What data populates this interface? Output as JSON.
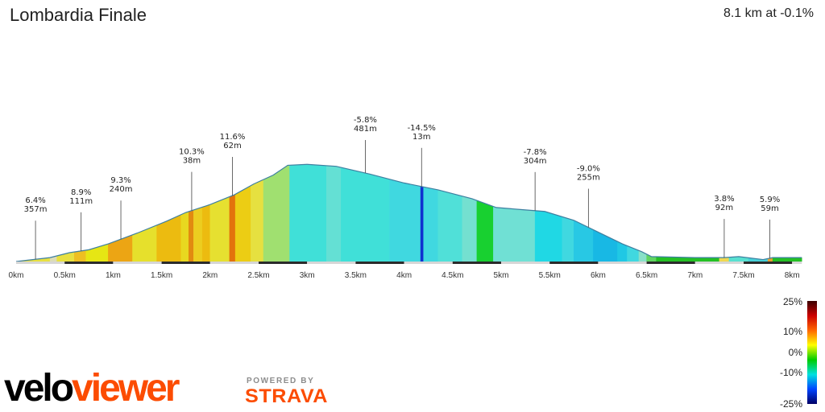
{
  "header": {
    "title": "Lombardia Finale",
    "summary": "8.1 km at -0.1%"
  },
  "brand": {
    "veloviewer": "veloviewer",
    "powered_by": "POWERED BY",
    "strava": "STRAVA",
    "strava_color": "#fc4c02"
  },
  "chart_data": {
    "type": "area",
    "title": "Lombardia Finale",
    "xlabel": "",
    "ylabel": "",
    "x_unit": "km",
    "xlim": [
      0,
      8.1
    ],
    "x_ticks": [
      "0km",
      "0.5km",
      "1km",
      "1.5km",
      "2km",
      "2.5km",
      "3km",
      "3.5km",
      "4km",
      "4.5km",
      "5km",
      "5.5km",
      "6km",
      "6.5km",
      "7km",
      "7.5km",
      "8km"
    ],
    "profile": {
      "x": [
        0,
        0.35,
        0.55,
        0.75,
        0.95,
        1.25,
        1.55,
        1.75,
        2.0,
        2.25,
        2.45,
        2.65,
        2.8,
        3.0,
        3.3,
        3.65,
        4.0,
        4.35,
        4.7,
        4.95,
        5.2,
        5.45,
        5.75,
        6.0,
        6.25,
        6.45,
        6.55,
        7.0,
        7.25,
        7.3,
        7.45,
        7.7,
        7.8,
        8.1
      ],
      "y": [
        0,
        4,
        9,
        12,
        18,
        29,
        41,
        50,
        58,
        68,
        79,
        88,
        98,
        99,
        97,
        89,
        80,
        73,
        64,
        55,
        53,
        51,
        42,
        30,
        18,
        10,
        5,
        4,
        4,
        4,
        5,
        2,
        4,
        4
      ]
    },
    "segments": [
      {
        "start": 0.0,
        "end": 0.35,
        "color": "#e8e040"
      },
      {
        "start": 0.35,
        "end": 0.42,
        "color": "#dcdcb8"
      },
      {
        "start": 0.42,
        "end": 0.6,
        "color": "#e8e040"
      },
      {
        "start": 0.6,
        "end": 0.72,
        "color": "#eebf22"
      },
      {
        "start": 0.72,
        "end": 0.95,
        "color": "#e6e614"
      },
      {
        "start": 0.95,
        "end": 1.2,
        "color": "#eca514"
      },
      {
        "start": 1.2,
        "end": 1.45,
        "color": "#e6e02c"
      },
      {
        "start": 1.45,
        "end": 1.7,
        "color": "#ecbb10"
      },
      {
        "start": 1.7,
        "end": 1.78,
        "color": "#e8d820"
      },
      {
        "start": 1.78,
        "end": 1.83,
        "color": "#e28a10"
      },
      {
        "start": 1.83,
        "end": 1.92,
        "color": "#eccd20"
      },
      {
        "start": 1.92,
        "end": 2.0,
        "color": "#ecbb10"
      },
      {
        "start": 2.0,
        "end": 2.2,
        "color": "#e6e030"
      },
      {
        "start": 2.2,
        "end": 2.26,
        "color": "#e3720c"
      },
      {
        "start": 2.26,
        "end": 2.42,
        "color": "#eccd14"
      },
      {
        "start": 2.42,
        "end": 2.55,
        "color": "#e6e040"
      },
      {
        "start": 2.55,
        "end": 2.82,
        "color": "#a0e070"
      },
      {
        "start": 2.82,
        "end": 3.2,
        "color": "#40e0d8"
      },
      {
        "start": 3.2,
        "end": 3.35,
        "color": "#64e0d4"
      },
      {
        "start": 3.35,
        "end": 3.85,
        "color": "#40e0d8"
      },
      {
        "start": 3.85,
        "end": 4.17,
        "color": "#40d8e0"
      },
      {
        "start": 4.17,
        "end": 4.2,
        "color": "#1030d0"
      },
      {
        "start": 4.2,
        "end": 4.35,
        "color": "#40d8e0"
      },
      {
        "start": 4.35,
        "end": 4.6,
        "color": "#50e0d8"
      },
      {
        "start": 4.6,
        "end": 4.75,
        "color": "#74e0d0"
      },
      {
        "start": 4.75,
        "end": 4.92,
        "color": "#18d030"
      },
      {
        "start": 4.92,
        "end": 5.35,
        "color": "#70e0d4"
      },
      {
        "start": 5.35,
        "end": 5.63,
        "color": "#20d8e4"
      },
      {
        "start": 5.63,
        "end": 5.75,
        "color": "#40d8e0"
      },
      {
        "start": 5.75,
        "end": 5.95,
        "color": "#28c8e4"
      },
      {
        "start": 5.95,
        "end": 6.2,
        "color": "#18b8e4"
      },
      {
        "start": 6.2,
        "end": 6.3,
        "color": "#20c8e4"
      },
      {
        "start": 6.3,
        "end": 6.42,
        "color": "#40d8e0"
      },
      {
        "start": 6.42,
        "end": 6.5,
        "color": "#88e0c8"
      },
      {
        "start": 6.5,
        "end": 6.6,
        "color": "#60d460"
      },
      {
        "start": 6.6,
        "end": 7.25,
        "color": "#24c024"
      },
      {
        "start": 7.25,
        "end": 7.35,
        "color": "#f0d850"
      },
      {
        "start": 7.35,
        "end": 7.55,
        "color": "#58e0d0"
      },
      {
        "start": 7.55,
        "end": 7.75,
        "color": "#48d0d8"
      },
      {
        "start": 7.75,
        "end": 7.8,
        "color": "#e8a030"
      },
      {
        "start": 7.8,
        "end": 8.1,
        "color": "#24c024"
      }
    ],
    "annotations": [
      {
        "x": 0.2,
        "label_grade": "6.4%",
        "label_length": "357m"
      },
      {
        "x": 0.67,
        "label_grade": "8.9%",
        "label_length": "111m"
      },
      {
        "x": 1.08,
        "label_grade": "9.3%",
        "label_length": "240m"
      },
      {
        "x": 1.81,
        "label_grade": "10.3%",
        "label_length": "38m"
      },
      {
        "x": 2.23,
        "label_grade": "11.6%",
        "label_length": "62m"
      },
      {
        "x": 3.6,
        "label_grade": "-5.8%",
        "label_length": "481m"
      },
      {
        "x": 4.18,
        "label_grade": "-14.5%",
        "label_length": "13m"
      },
      {
        "x": 5.35,
        "label_grade": "-7.8%",
        "label_length": "304m"
      },
      {
        "x": 5.9,
        "label_grade": "-9.0%",
        "label_length": "255m"
      },
      {
        "x": 7.3,
        "label_grade": "3.8%",
        "label_length": "92m"
      },
      {
        "x": 7.77,
        "label_grade": "5.9%",
        "label_length": "59m"
      }
    ],
    "legend": {
      "type": "gradient",
      "labels": [
        "25%",
        "10%",
        "0%",
        "-10%",
        "-25%"
      ],
      "colors": [
        "#3a0000",
        "#cc0000",
        "#ff6600",
        "#ffff00",
        "#00cc00",
        "#00e0e0",
        "#0044ff",
        "#000066"
      ]
    }
  }
}
